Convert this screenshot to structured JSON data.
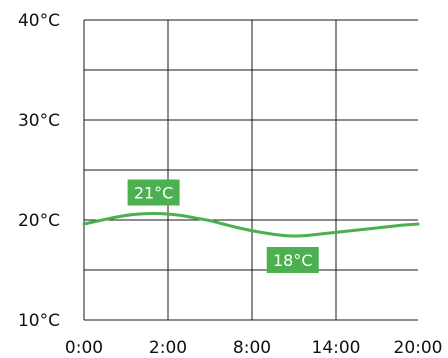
{
  "chart_data": {
    "type": "line",
    "title": "",
    "xlabel": "",
    "ylabel": "",
    "x_tick_labels": [
      "0:00",
      "2:00",
      "8:00",
      "14:00",
      "20:00"
    ],
    "y_tick_labels": [
      "10°C",
      "20°C",
      "30°C",
      "40°C"
    ],
    "y_ticks": [
      10,
      20,
      30,
      40
    ],
    "ylim": [
      10,
      40
    ],
    "grid": true,
    "legend": "none",
    "series": [
      {
        "color": "#4caf50",
        "x": [
          0,
          1,
          2,
          3,
          4,
          5,
          6,
          7,
          8,
          9,
          10,
          11,
          12,
          13,
          14,
          15,
          16,
          17,
          18,
          19,
          20,
          21,
          22,
          23,
          24
        ],
        "y": [
          19.6,
          19.9,
          20.2,
          20.45,
          20.6,
          20.65,
          20.6,
          20.45,
          20.2,
          19.95,
          19.6,
          19.25,
          18.95,
          18.7,
          18.5,
          18.4,
          18.45,
          18.6,
          18.75,
          18.9,
          19.05,
          19.2,
          19.35,
          19.5,
          19.6
        ]
      }
    ],
    "annotations": [
      {
        "text": "21°C",
        "x": 5,
        "y": 20.65,
        "placement": "above"
      },
      {
        "text": "18°C",
        "x": 15,
        "y": 18.4,
        "placement": "below"
      }
    ],
    "colors": {
      "grid": "#1a1a1a",
      "label_background": "#4caf50",
      "label_text": "#ffffff"
    }
  }
}
